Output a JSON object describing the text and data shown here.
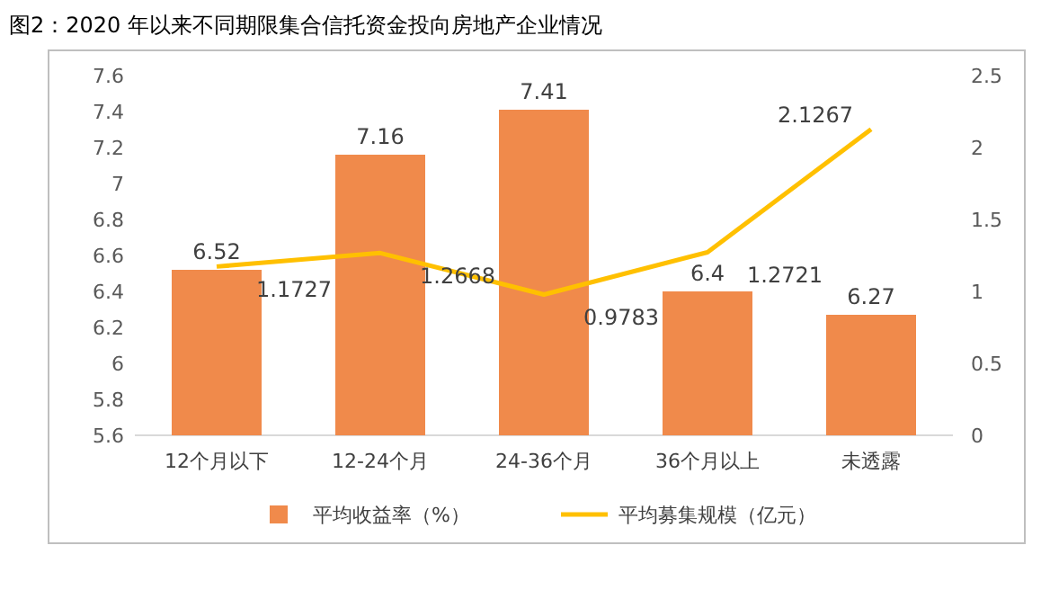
{
  "chart_data": {
    "type": "bar",
    "title": "图2：2020 年以来不同期限集合信托资金投向房地产企业情况",
    "categories": [
      "12个月以下",
      "12-24个月",
      "24-36个月",
      "36个月以上",
      "未透露"
    ],
    "series": [
      {
        "name": "平均收益率（%）",
        "color": "#f08a4b",
        "values": [
          6.52,
          7.16,
          7.41,
          6.4,
          6.27
        ]
      },
      {
        "name": "平均募集规模（亿元）",
        "type": "line",
        "axis": "y2",
        "color": "#ffc000",
        "values": [
          1.1727,
          1.2668,
          0.9783,
          1.2721,
          2.1267
        ]
      }
    ],
    "ylim": [
      5.6,
      7.6
    ],
    "yticks": [
      5.6,
      5.8,
      6,
      6.2,
      6.4,
      6.6,
      6.8,
      7,
      7.2,
      7.4,
      7.6
    ],
    "y2lim": [
      0,
      2.5
    ],
    "y2ticks": [
      0,
      0.5,
      1,
      1.5,
      2,
      2.5
    ],
    "data_labels": true,
    "legend": "bottom"
  }
}
